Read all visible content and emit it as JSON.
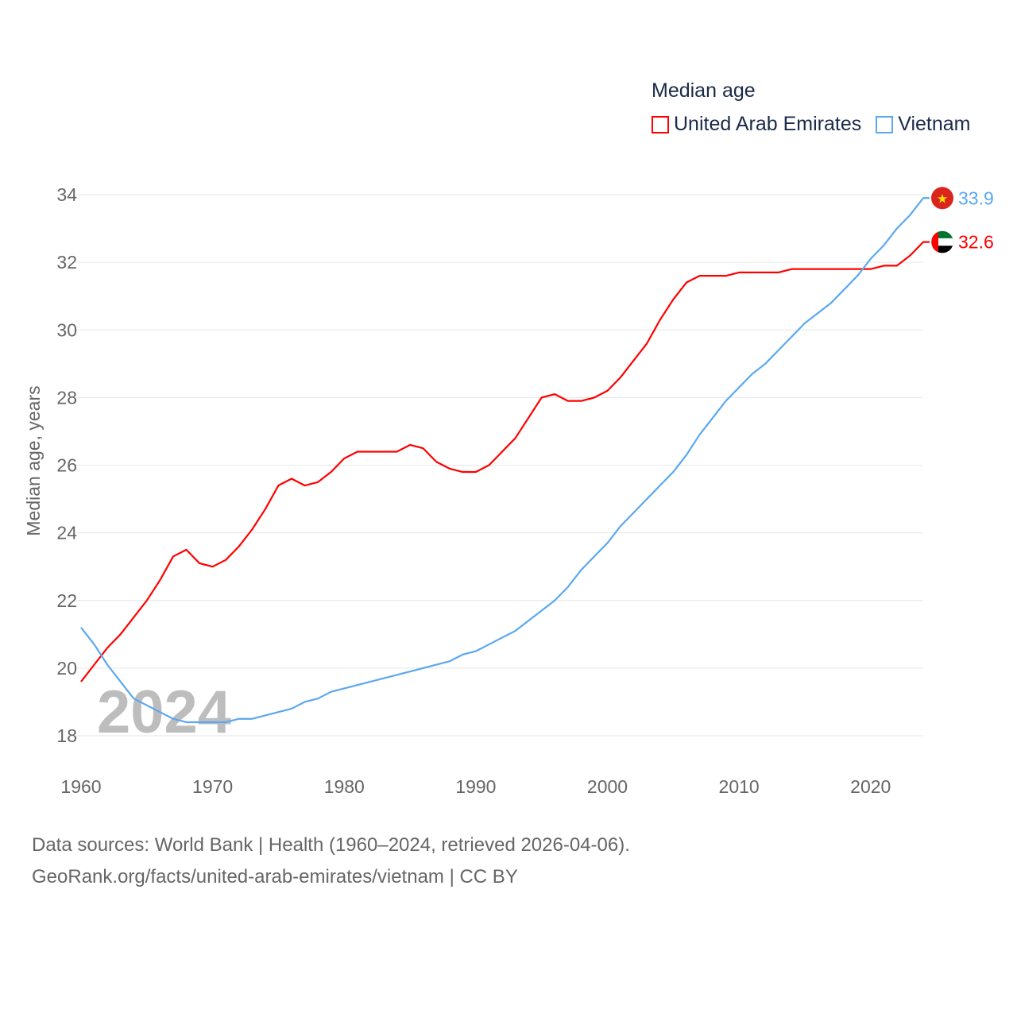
{
  "chart_data": {
    "type": "line",
    "title": "Median age",
    "xlabel": "",
    "ylabel": "Median age, years",
    "xlim": [
      1960,
      2024
    ],
    "ylim": [
      18,
      34
    ],
    "yticks": [
      "18",
      "20",
      "22",
      "24",
      "26",
      "28",
      "30",
      "32",
      "34"
    ],
    "xticks": [
      "1960",
      "1970",
      "1980",
      "1990",
      "2000",
      "2010",
      "2020"
    ],
    "grid": true,
    "legend_placement": "top-right",
    "year_watermark": "2024",
    "series": [
      {
        "name": "United Arab Emirates",
        "color": "#ff0000",
        "end_label": "32.6",
        "flag": "uae-flag",
        "x_start": 1960,
        "values": [
          19.6,
          20.1,
          20.6,
          21.0,
          21.5,
          22.0,
          22.6,
          23.3,
          23.5,
          23.1,
          23.0,
          23.2,
          23.6,
          24.1,
          24.7,
          25.4,
          25.6,
          25.4,
          25.5,
          25.8,
          26.2,
          26.4,
          26.4,
          26.4,
          26.4,
          26.6,
          26.5,
          26.1,
          25.9,
          25.8,
          25.8,
          26.0,
          26.4,
          26.8,
          27.4,
          28.0,
          28.1,
          27.9,
          27.9,
          28.0,
          28.2,
          28.6,
          29.1,
          29.6,
          30.3,
          30.9,
          31.4,
          31.6,
          31.6,
          31.6,
          31.7,
          31.7,
          31.7,
          31.7,
          31.8,
          31.8,
          31.8,
          31.8,
          31.8,
          31.8,
          31.8,
          31.9,
          31.9,
          32.2,
          32.6
        ]
      },
      {
        "name": "Vietnam",
        "color": "#5ba8f0",
        "end_label": "33.9",
        "flag": "vietnam-flag",
        "x_start": 1960,
        "values": [
          21.2,
          20.7,
          20.1,
          19.6,
          19.1,
          18.9,
          18.7,
          18.5,
          18.4,
          18.4,
          18.4,
          18.4,
          18.5,
          18.5,
          18.6,
          18.7,
          18.8,
          19.0,
          19.1,
          19.3,
          19.4,
          19.5,
          19.6,
          19.7,
          19.8,
          19.9,
          20.0,
          20.1,
          20.2,
          20.4,
          20.5,
          20.7,
          20.9,
          21.1,
          21.4,
          21.7,
          22.0,
          22.4,
          22.9,
          23.3,
          23.7,
          24.2,
          24.6,
          25.0,
          25.4,
          25.8,
          26.3,
          26.9,
          27.4,
          27.9,
          28.3,
          28.7,
          29.0,
          29.4,
          29.8,
          30.2,
          30.5,
          30.8,
          31.2,
          31.6,
          32.1,
          32.5,
          33.0,
          33.4,
          33.9
        ]
      }
    ]
  },
  "footer": {
    "line1": "Data sources: World Bank | Health (1960–2024, retrieved 2026-04-06).",
    "line2": "GeoRank.org/facts/united-arab-emirates/vietnam | CC BY"
  }
}
